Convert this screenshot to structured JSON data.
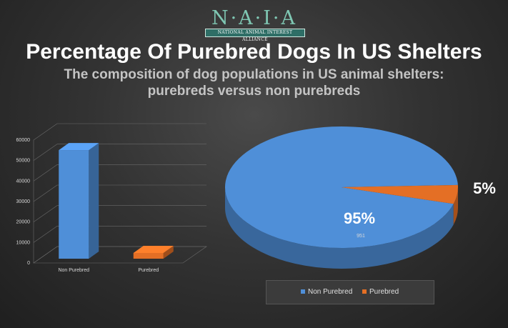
{
  "logo": {
    "text": "N·A·I·A",
    "tagline": "NATIONAL ANIMAL INTEREST ALLIANCE"
  },
  "title": "Percentage Of Purebred Dogs In US Shelters",
  "subtitle_line1": "The composition of dog populations in US animal shelters:",
  "subtitle_line2": "purebreds versus non purebreds",
  "colors": {
    "non_purebred": "#4f8fd8",
    "purebred": "#e46f25"
  },
  "chart_data": [
    {
      "type": "bar",
      "categories": [
        "Non Purebred",
        "Purebred"
      ],
      "values": [
        53000,
        2800
      ],
      "ylim": [
        0,
        60000
      ],
      "yticks": [
        0,
        10000,
        20000,
        30000,
        40000,
        50000,
        60000
      ],
      "grid": true
    },
    {
      "type": "pie",
      "labels": [
        "Non Purebred",
        "Purebred"
      ],
      "values": [
        95,
        5
      ],
      "data_labels": [
        "95%",
        "5%"
      ],
      "inner_label": "951",
      "legend": "bottom"
    }
  ]
}
